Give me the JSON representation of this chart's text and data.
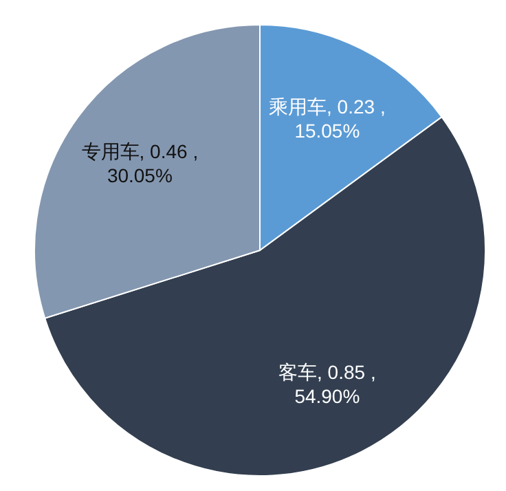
{
  "chart_data": {
    "type": "pie",
    "categories": [
      "乘用车",
      "客车",
      "专用车"
    ],
    "values": [
      0.23,
      0.85,
      0.46
    ],
    "colors": [
      "#5b9bd5",
      "#333f50",
      "#8497b0"
    ],
    "value_labels": [
      ", 0.23 , 15.05%",
      ", 0.85 , 54.90%",
      ", 0.46 , 30.05%"
    ],
    "legend": false
  }
}
